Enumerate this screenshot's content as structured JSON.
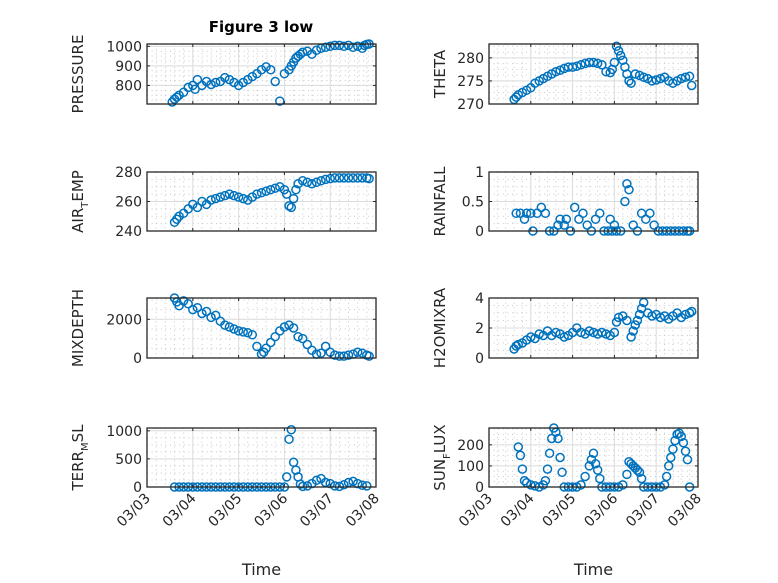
{
  "figure_title": "Figure 3 low",
  "marker_color": "#0072BD",
  "chart_data": [
    {
      "type": "scatter",
      "name": "pressure",
      "title": "Figure 3 low",
      "ylabel": "PRESSURE",
      "ylabel_sub": "",
      "ylabel_rest": "",
      "xlabel": "",
      "xticklabels_visible": false,
      "xlim": [
        0,
        5
      ],
      "ylim": [
        705,
        1012
      ],
      "yticks": [
        800,
        900,
        1000
      ],
      "yticklabels": [
        "800",
        "900",
        "1000"
      ],
      "grid": true,
      "minor_grid": true,
      "x": [
        0.55,
        0.6,
        0.65,
        0.7,
        0.8,
        0.9,
        1.0,
        1.05,
        1.1,
        1.2,
        1.3,
        1.4,
        1.5,
        1.6,
        1.7,
        1.8,
        1.9,
        2.0,
        2.1,
        2.2,
        2.3,
        2.4,
        2.5,
        2.6,
        2.7,
        2.8,
        2.9,
        3.0,
        3.1,
        3.15,
        3.2,
        3.25,
        3.3,
        3.35,
        3.4,
        3.5,
        3.6,
        3.7,
        3.8,
        3.9,
        4.0,
        4.1,
        4.2,
        4.3,
        4.4,
        4.5,
        4.6,
        4.7,
        4.75,
        4.8,
        4.85
      ],
      "values": [
        715,
        730,
        740,
        750,
        765,
        790,
        800,
        780,
        830,
        800,
        820,
        805,
        815,
        820,
        840,
        830,
        815,
        800,
        815,
        830,
        845,
        860,
        880,
        895,
        880,
        820,
        720,
        860,
        880,
        900,
        920,
        940,
        950,
        960,
        970,
        975,
        960,
        980,
        990,
        995,
        1000,
        1005,
        1005,
        1000,
        1005,
        995,
        1000,
        990,
        1005,
        1010,
        1012
      ],
      "xticks": [
        0,
        1,
        2,
        3,
        4,
        5
      ],
      "xticklabels": [
        "03/03",
        "03/04",
        "03/05",
        "03/06",
        "03/07",
        "03/08"
      ]
    },
    {
      "type": "scatter",
      "name": "theta",
      "title": "",
      "ylabel": "THETA",
      "ylabel_sub": "",
      "ylabel_rest": "",
      "xlabel": "",
      "xticklabels_visible": false,
      "xlim": [
        0,
        5
      ],
      "ylim": [
        270,
        283
      ],
      "yticks": [
        270,
        275,
        280
      ],
      "yticklabels": [
        "270",
        "275",
        "280"
      ],
      "grid": true,
      "minor_grid": true,
      "x": [
        0.6,
        0.65,
        0.7,
        0.8,
        0.9,
        1.0,
        1.1,
        1.2,
        1.3,
        1.4,
        1.5,
        1.6,
        1.7,
        1.8,
        1.9,
        2.0,
        2.1,
        2.2,
        2.3,
        2.4,
        2.5,
        2.6,
        2.7,
        2.8,
        2.9,
        2.95,
        3.0,
        3.05,
        3.1,
        3.15,
        3.2,
        3.25,
        3.3,
        3.35,
        3.4,
        3.5,
        3.6,
        3.7,
        3.8,
        3.9,
        4.0,
        4.1,
        4.2,
        4.3,
        4.4,
        4.5,
        4.6,
        4.7,
        4.8,
        4.85
      ],
      "values": [
        271,
        271.5,
        272,
        272.5,
        273,
        273.5,
        274.5,
        275,
        275.5,
        276,
        276.5,
        277,
        277.3,
        277.7,
        278,
        278,
        278.2,
        278.5,
        278.8,
        279,
        279,
        278.8,
        278.5,
        277,
        276.8,
        277.5,
        279,
        282.5,
        281.5,
        280.5,
        279.5,
        278,
        276.5,
        275,
        274.5,
        276.5,
        276.2,
        275.8,
        275.5,
        275,
        275.2,
        275.5,
        275.8,
        275,
        274.5,
        275,
        275.5,
        275.8,
        276,
        274
      ]
    },
    {
      "type": "scatter",
      "name": "air_temp",
      "title": "",
      "ylabel": "AIR",
      "ylabel_sub": "T",
      "ylabel_rest": "EMP",
      "xlabel": "",
      "xticklabels_visible": false,
      "xlim": [
        0,
        5
      ],
      "ylim": [
        240,
        280
      ],
      "yticks": [
        240,
        260,
        280
      ],
      "yticklabels": [
        "240",
        "260",
        "280"
      ],
      "grid": true,
      "minor_grid": true,
      "x": [
        0.6,
        0.65,
        0.7,
        0.8,
        0.9,
        1.0,
        1.1,
        1.2,
        1.3,
        1.4,
        1.5,
        1.6,
        1.7,
        1.8,
        1.9,
        2.0,
        2.1,
        2.2,
        2.3,
        2.4,
        2.5,
        2.6,
        2.7,
        2.8,
        2.9,
        3.0,
        3.05,
        3.1,
        3.15,
        3.2,
        3.25,
        3.3,
        3.4,
        3.5,
        3.6,
        3.7,
        3.8,
        3.9,
        4.0,
        4.1,
        4.2,
        4.3,
        4.4,
        4.5,
        4.6,
        4.7,
        4.8,
        4.85
      ],
      "values": [
        246,
        248,
        250,
        252,
        255,
        258,
        256,
        260,
        258,
        261,
        262,
        263,
        264,
        265,
        264,
        263,
        262,
        261,
        263,
        265,
        266,
        267,
        268,
        269,
        270,
        268,
        265,
        257,
        256,
        262,
        268,
        272,
        274,
        273,
        272,
        273,
        274,
        275,
        275.5,
        276,
        276,
        276,
        276,
        276,
        276,
        276,
        276,
        275.5
      ]
    },
    {
      "type": "scatter",
      "name": "rainfall",
      "title": "",
      "ylabel": "RAINFALL",
      "ylabel_sub": "",
      "ylabel_rest": "",
      "xlabel": "",
      "xticklabels_visible": false,
      "xlim": [
        0,
        5
      ],
      "ylim": [
        0,
        1
      ],
      "yticks": [
        0,
        0.5,
        1
      ],
      "yticklabels": [
        "0",
        "0.5",
        "1"
      ],
      "grid": true,
      "minor_grid": true,
      "x": [
        0.65,
        0.75,
        0.85,
        0.9,
        1.0,
        1.05,
        1.15,
        1.25,
        1.35,
        1.45,
        1.55,
        1.65,
        1.7,
        1.8,
        1.85,
        1.95,
        2.05,
        2.15,
        2.25,
        2.35,
        2.45,
        2.55,
        2.65,
        2.75,
        2.85,
        2.9,
        2.95,
        3.0,
        3.05,
        3.15,
        3.25,
        3.3,
        3.35,
        3.45,
        3.55,
        3.65,
        3.75,
        3.85,
        3.95,
        4.05,
        4.15,
        4.25,
        4.35,
        4.45,
        4.55,
        4.65,
        4.75,
        4.8
      ],
      "values": [
        0.3,
        0.3,
        0.2,
        0.3,
        0.3,
        0,
        0.3,
        0.4,
        0.3,
        0,
        0,
        0.1,
        0.2,
        0.1,
        0.2,
        0,
        0.4,
        0.2,
        0.3,
        0.1,
        0,
        0.2,
        0.3,
        0,
        0,
        0.2,
        0,
        0.1,
        0,
        0,
        0.5,
        0.8,
        0.7,
        0.1,
        0,
        0.3,
        0.2,
        0.3,
        0.1,
        0,
        0,
        0,
        0,
        0,
        0,
        0,
        0,
        0
      ]
    },
    {
      "type": "scatter",
      "name": "mixdepth",
      "title": "",
      "ylabel": "MIXDEPTH",
      "ylabel_sub": "",
      "ylabel_rest": "",
      "xlabel": "",
      "xticklabels_visible": false,
      "xlim": [
        0,
        5
      ],
      "ylim": [
        0,
        3100
      ],
      "yticks": [
        0,
        2000
      ],
      "yticklabels": [
        "0",
        "2000"
      ],
      "grid": true,
      "minor_grid": true,
      "x": [
        0.6,
        0.65,
        0.7,
        0.8,
        0.9,
        1.0,
        1.1,
        1.2,
        1.3,
        1.4,
        1.5,
        1.6,
        1.7,
        1.8,
        1.9,
        2.0,
        2.1,
        2.2,
        2.3,
        2.4,
        2.5,
        2.55,
        2.6,
        2.7,
        2.8,
        2.9,
        3.0,
        3.1,
        3.2,
        3.3,
        3.4,
        3.5,
        3.6,
        3.7,
        3.8,
        3.9,
        4.0,
        4.1,
        4.2,
        4.3,
        4.4,
        4.5,
        4.6,
        4.7,
        4.8,
        4.85
      ],
      "values": [
        3100,
        2900,
        2700,
        2950,
        2800,
        2500,
        2600,
        2300,
        2400,
        2100,
        2200,
        1900,
        1700,
        1600,
        1500,
        1400,
        1350,
        1300,
        1200,
        600,
        200,
        300,
        500,
        800,
        1100,
        1400,
        1600,
        1700,
        1550,
        1100,
        1000,
        700,
        400,
        200,
        250,
        600,
        300,
        150,
        100,
        100,
        150,
        200,
        300,
        250,
        150,
        100
      ]
    },
    {
      "type": "scatter",
      "name": "h2omixra",
      "title": "",
      "ylabel": "H2OMIXRA",
      "ylabel_sub": "",
      "ylabel_rest": "",
      "xlabel": "",
      "xticklabels_visible": false,
      "xlim": [
        0,
        5
      ],
      "ylim": [
        0,
        4
      ],
      "yticks": [
        0,
        2,
        4
      ],
      "yticklabels": [
        "0",
        "2",
        "4"
      ],
      "grid": true,
      "minor_grid": true,
      "x": [
        0.6,
        0.65,
        0.7,
        0.8,
        0.9,
        1.0,
        1.1,
        1.2,
        1.3,
        1.4,
        1.5,
        1.6,
        1.7,
        1.8,
        1.9,
        2.0,
        2.1,
        2.2,
        2.3,
        2.4,
        2.5,
        2.6,
        2.7,
        2.8,
        2.9,
        3.0,
        3.05,
        3.1,
        3.2,
        3.3,
        3.4,
        3.45,
        3.5,
        3.55,
        3.6,
        3.65,
        3.7,
        3.8,
        3.9,
        4.0,
        4.1,
        4.2,
        4.3,
        4.4,
        4.5,
        4.6,
        4.7,
        4.8,
        4.85
      ],
      "values": [
        0.6,
        0.8,
        0.9,
        1.0,
        1.2,
        1.4,
        1.3,
        1.6,
        1.5,
        1.8,
        1.5,
        1.7,
        1.6,
        1.4,
        1.5,
        1.7,
        2.0,
        1.7,
        1.6,
        1.8,
        1.7,
        1.6,
        1.7,
        1.6,
        1.5,
        1.7,
        2.4,
        2.7,
        2.8,
        2.5,
        1.4,
        1.8,
        2.2,
        2.5,
        2.9,
        3.3,
        3.7,
        3.0,
        2.8,
        2.9,
        2.7,
        2.8,
        2.6,
        2.8,
        3.0,
        2.7,
        2.9,
        3.0,
        3.1
      ]
    },
    {
      "type": "scatter",
      "name": "terr_msl",
      "title": "",
      "ylabel": "TERR",
      "ylabel_sub": "M",
      "ylabel_rest": "SL",
      "xlabel": "Time",
      "xticklabels_visible": true,
      "xlim": [
        0,
        5
      ],
      "ylim": [
        0,
        1050
      ],
      "yticks": [
        0,
        500,
        1000
      ],
      "yticklabels": [
        "0",
        "500",
        "1000"
      ],
      "xticks": [
        0,
        1,
        2,
        3,
        4,
        5
      ],
      "xticklabels": [
        "03/03",
        "03/04",
        "03/05",
        "03/06",
        "03/07",
        "03/08"
      ],
      "grid": true,
      "minor_grid": true,
      "x": [
        0.6,
        0.7,
        0.8,
        0.9,
        1.0,
        1.1,
        1.2,
        1.3,
        1.4,
        1.5,
        1.6,
        1.7,
        1.8,
        1.9,
        2.0,
        2.1,
        2.2,
        2.3,
        2.4,
        2.5,
        2.6,
        2.7,
        2.8,
        2.9,
        3.0,
        3.05,
        3.1,
        3.15,
        3.2,
        3.25,
        3.3,
        3.35,
        3.4,
        3.5,
        3.6,
        3.7,
        3.8,
        3.9,
        4.0,
        4.1,
        4.2,
        4.3,
        4.4,
        4.5,
        4.6,
        4.7,
        4.8
      ],
      "values": [
        0,
        0,
        0,
        0,
        0,
        0,
        0,
        0,
        0,
        0,
        0,
        0,
        0,
        0,
        0,
        0,
        0,
        0,
        0,
        0,
        0,
        0,
        0,
        0,
        0,
        180,
        850,
        1020,
        440,
        300,
        180,
        50,
        10,
        20,
        60,
        120,
        150,
        80,
        60,
        20,
        10,
        40,
        80,
        100,
        60,
        30,
        20
      ]
    },
    {
      "type": "scatter",
      "name": "sun_flux",
      "title": "",
      "ylabel": "SUN",
      "ylabel_sub": "F",
      "ylabel_rest": "LUX",
      "xlabel": "Time",
      "xticklabels_visible": true,
      "xlim": [
        0,
        5
      ],
      "ylim": [
        0,
        280
      ],
      "yticks": [
        0,
        100,
        200
      ],
      "yticklabels": [
        "0",
        "100",
        "200"
      ],
      "xticks": [
        0,
        1,
        2,
        3,
        4,
        5
      ],
      "xticklabels": [
        "03/03",
        "03/04",
        "03/05",
        "03/06",
        "03/07",
        "03/08"
      ],
      "grid": true,
      "minor_grid": true,
      "x": [
        0.7,
        0.75,
        0.8,
        0.85,
        0.9,
        1.0,
        1.1,
        1.2,
        1.3,
        1.35,
        1.4,
        1.45,
        1.5,
        1.55,
        1.6,
        1.65,
        1.7,
        1.75,
        1.8,
        1.9,
        2.0,
        2.1,
        2.2,
        2.3,
        2.4,
        2.45,
        2.5,
        2.55,
        2.6,
        2.65,
        2.7,
        2.8,
        2.9,
        3.0,
        3.1,
        3.2,
        3.3,
        3.35,
        3.4,
        3.45,
        3.5,
        3.55,
        3.6,
        3.65,
        3.7,
        3.8,
        3.9,
        4.0,
        4.1,
        4.2,
        4.25,
        4.3,
        4.35,
        4.4,
        4.45,
        4.5,
        4.55,
        4.6,
        4.65,
        4.7,
        4.75,
        4.8
      ],
      "values": [
        190,
        150,
        85,
        30,
        20,
        10,
        5,
        0,
        10,
        30,
        85,
        160,
        230,
        280,
        260,
        230,
        140,
        70,
        0,
        0,
        0,
        0,
        10,
        50,
        100,
        130,
        160,
        110,
        80,
        40,
        0,
        0,
        0,
        0,
        0,
        10,
        60,
        120,
        110,
        100,
        90,
        80,
        70,
        40,
        0,
        0,
        0,
        0,
        0,
        10,
        50,
        100,
        140,
        180,
        220,
        250,
        255,
        240,
        210,
        170,
        130,
        0
      ]
    }
  ]
}
